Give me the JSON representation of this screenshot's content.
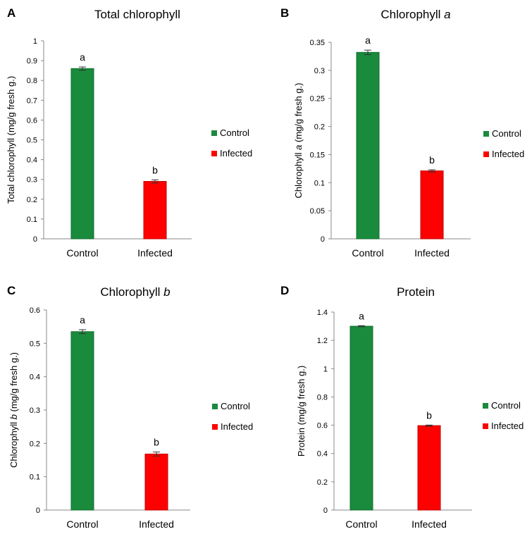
{
  "chart_data": [
    {
      "panel": "A",
      "type": "bar",
      "title": "Total chlorophyll",
      "title_italic": "",
      "ylabel": "Total chlorophyll (mg/g fresh g.)",
      "ylabel_parts": [
        "Total chlorophyll",
        "",
        " (mg/g fresh g.)"
      ],
      "categories": [
        "Control",
        "Infected"
      ],
      "values": [
        0.86,
        0.29
      ],
      "errors": [
        0.008,
        0.008
      ],
      "significance": [
        "a",
        "b"
      ],
      "colors": [
        "#1a8a3c",
        "#ff0000"
      ],
      "ylim": [
        0,
        1
      ],
      "yticks": [
        "0",
        "0.1",
        "0.2",
        "0.3",
        "0.4",
        "0.5",
        "0.6",
        "0.7",
        "0.8",
        "0.9",
        "1"
      ],
      "ytick_values": [
        0,
        0.1,
        0.2,
        0.3,
        0.4,
        0.5,
        0.6,
        0.7,
        0.8,
        0.9,
        1
      ],
      "legend": [
        "Control",
        "Infected"
      ],
      "legend_position": "right"
    },
    {
      "panel": "B",
      "type": "bar",
      "title": "Chlorophyll ",
      "title_italic": "a",
      "ylabel": "Chlorophyll a (mg/g fresh g.)",
      "ylabel_parts": [
        "Chlorophyll ",
        "a",
        " (mg/g fresh g.)"
      ],
      "categories": [
        "Control",
        "Infected"
      ],
      "values": [
        0.332,
        0.121
      ],
      "errors": [
        0.004,
        0.002
      ],
      "significance": [
        "a",
        "b"
      ],
      "colors": [
        "#1a8a3c",
        "#ff0000"
      ],
      "ylim": [
        0,
        0.35
      ],
      "yticks": [
        "0",
        "0.05",
        "0.1",
        "0.15",
        "0.2",
        "0.25",
        "0.3",
        "0.35"
      ],
      "ytick_values": [
        0,
        0.05,
        0.1,
        0.15,
        0.2,
        0.25,
        0.3,
        0.35
      ],
      "legend": [
        "Control",
        "Infected"
      ],
      "legend_position": "right"
    },
    {
      "panel": "C",
      "type": "bar",
      "title": "Chlorophyll ",
      "title_italic": "b",
      "ylabel": "Chlorophyll b (mg/g fresh g.)",
      "ylabel_parts": [
        "Chlorophyll ",
        "b",
        " (mg/g fresh g.)"
      ],
      "categories": [
        "Control",
        "Infected"
      ],
      "values": [
        0.535,
        0.168
      ],
      "errors": [
        0.006,
        0.006
      ],
      "significance": [
        "a",
        "b"
      ],
      "colors": [
        "#1a8a3c",
        "#ff0000"
      ],
      "ylim": [
        0,
        0.6
      ],
      "yticks": [
        "0",
        "0.1",
        "0.2",
        "0.3",
        "0.4",
        "0.5",
        "0.6"
      ],
      "ytick_values": [
        0,
        0.1,
        0.2,
        0.3,
        0.4,
        0.5,
        0.6
      ],
      "legend": [
        "Control",
        "Infected"
      ],
      "legend_position": "right"
    },
    {
      "panel": "D",
      "type": "bar",
      "title": "Protein",
      "title_italic": "",
      "ylabel": "Protein (mg/g fresh g.)",
      "ylabel_parts": [
        "Protein (mg/g fresh g.)",
        "",
        ""
      ],
      "categories": [
        "Control",
        "Infected"
      ],
      "values": [
        1.3,
        0.597
      ],
      "errors": [
        0.004,
        0.004
      ],
      "significance": [
        "a",
        "b"
      ],
      "colors": [
        "#1a8a3c",
        "#ff0000"
      ],
      "ylim": [
        0,
        1.4
      ],
      "yticks": [
        "0",
        "0.2",
        "0.4",
        "0.6",
        "0.8",
        "1",
        "1.2",
        "1.4"
      ],
      "ytick_values": [
        0,
        0.2,
        0.4,
        0.6,
        0.8,
        1,
        1.2,
        1.4
      ],
      "legend": [
        "Control",
        "Infected"
      ],
      "legend_position": "right"
    }
  ]
}
